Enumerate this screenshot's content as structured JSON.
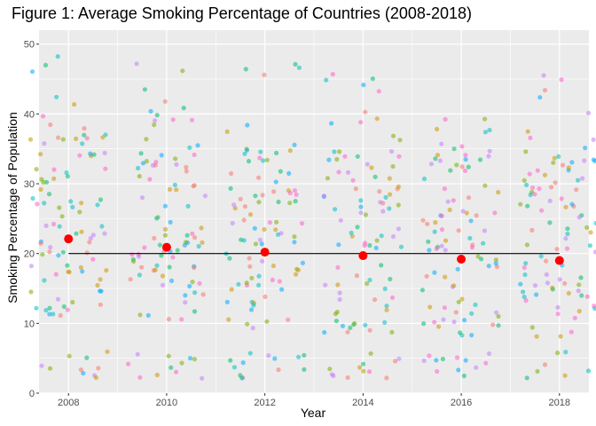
{
  "chart_data": {
    "type": "scatter",
    "title": "Figure 1: Average Smoking Percentage of Countries (2008-2018)",
    "xlabel": "Year",
    "ylabel": "Smoking Percentage of Population",
    "xlim": [
      2007.4,
      2018.6
    ],
    "ylim": [
      0,
      52
    ],
    "x_ticks": [
      2008,
      2010,
      2012,
      2014,
      2016,
      2018
    ],
    "x_tick_labels": [
      "2008",
      "2010",
      "2012",
      "2014",
      "2016",
      "2018"
    ],
    "y_ticks": [
      0,
      10,
      20,
      30,
      40,
      50
    ],
    "y_tick_labels": [
      "0",
      "10",
      "20",
      "30",
      "40",
      "50"
    ],
    "grid": true,
    "legend": "none",
    "colors": {
      "panel": "#ebebeb",
      "grid": "#ffffff",
      "means": "#ff0000",
      "trend": "#000000",
      "point_palette": [
        "#f8766d",
        "#cd9600",
        "#7cae00",
        "#00be67",
        "#00bfc4",
        "#00a9ff",
        "#c77cff",
        "#ff61cc"
      ]
    },
    "jitter_width": 0.8,
    "points_per_year": 100,
    "observed_years": [
      2008,
      2010,
      2012,
      2014,
      2016,
      2018
    ],
    "series": [
      {
        "kind": "mean_points",
        "x": [
          2008,
          2010,
          2012,
          2014,
          2016,
          2018
        ],
        "y": [
          22.1,
          20.9,
          20.2,
          19.7,
          19.2,
          19.0
        ]
      },
      {
        "kind": "trend_line",
        "x": [
          2008,
          2018
        ],
        "y": [
          20.0,
          20.0
        ]
      }
    ]
  }
}
